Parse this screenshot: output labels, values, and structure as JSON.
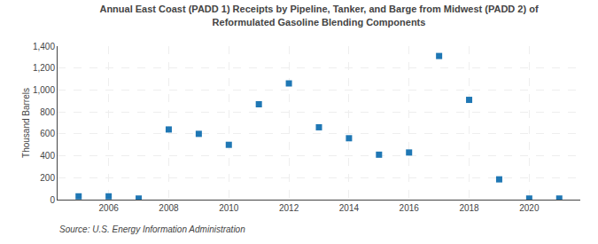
{
  "chart_data": {
    "type": "scatter",
    "title": "Annual East Coast (PADD 1) Receipts by Pipeline, Tanker, and Barge from Midwest (PADD 2) of\nReformulated Gasoline Blending Components",
    "ylabel": "Thousand Barrels",
    "annotations": [
      "Source: U.S. Energy Information Administration"
    ],
    "x": [
      2005,
      2006,
      2007,
      2008,
      2009,
      2010,
      2011,
      2012,
      2013,
      2014,
      2015,
      2016,
      2017,
      2018,
      2019,
      2020,
      2021
    ],
    "values": [
      30,
      30,
      10,
      640,
      600,
      500,
      870,
      1060,
      660,
      560,
      410,
      430,
      1310,
      910,
      185,
      10,
      10
    ],
    "marker": "square",
    "xlim": [
      2004.3,
      2021.7
    ],
    "xticks": [
      2006,
      2008,
      2010,
      2012,
      2014,
      2016,
      2018,
      2020
    ],
    "ylim": [
      0,
      1400
    ],
    "yticks": [
      0,
      200,
      400,
      600,
      800,
      {
        "value": 1000,
        "label": "1,000"
      },
      {
        "value": 1200,
        "label": "1,200"
      },
      {
        "value": 1400,
        "label": "1,400"
      }
    ],
    "grid": true
  }
}
